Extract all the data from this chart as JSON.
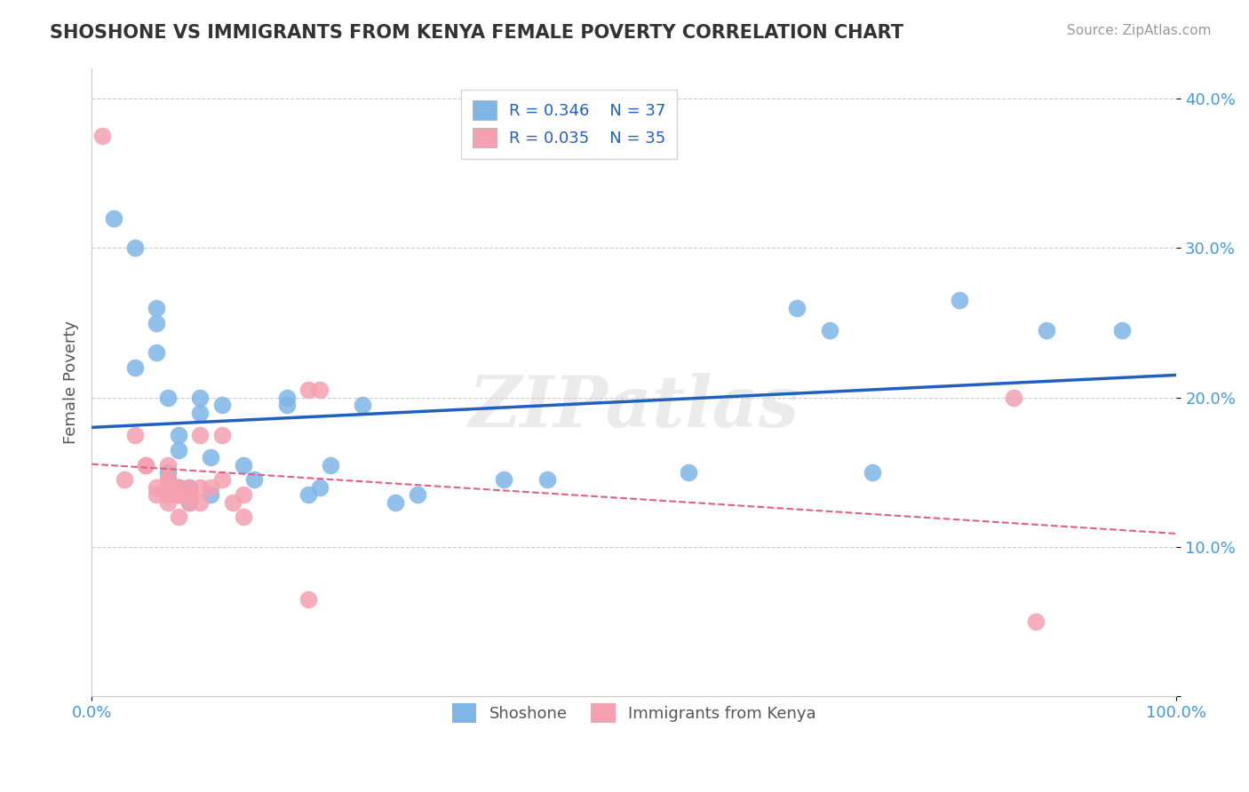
{
  "title": "SHOSHONE VS IMMIGRANTS FROM KENYA FEMALE POVERTY CORRELATION CHART",
  "source_text": "Source: ZipAtlas.com",
  "ylabel": "Female Poverty",
  "xlim": [
    0,
    1.0
  ],
  "ylim": [
    0,
    0.42
  ],
  "yticks": [
    0.0,
    0.1,
    0.2,
    0.3,
    0.4
  ],
  "yticklabels": [
    "",
    "10.0%",
    "20.0%",
    "30.0%",
    "40.0%"
  ],
  "legend1_R": "0.346",
  "legend1_N": "37",
  "legend2_R": "0.035",
  "legend2_N": "35",
  "shoshone_color": "#7EB6E8",
  "kenya_color": "#F4A0B0",
  "shoshone_line_color": "#2060C0",
  "kenya_line_color": "#E06080",
  "watermark": "ZIPatlas",
  "shoshone_x": [
    0.02,
    0.04,
    0.04,
    0.06,
    0.06,
    0.06,
    0.07,
    0.07,
    0.08,
    0.08,
    0.08,
    0.09,
    0.09,
    0.1,
    0.1,
    0.11,
    0.11,
    0.12,
    0.14,
    0.15,
    0.18,
    0.18,
    0.2,
    0.21,
    0.22,
    0.25,
    0.28,
    0.3,
    0.38,
    0.42,
    0.55,
    0.65,
    0.68,
    0.72,
    0.8,
    0.88,
    0.95
  ],
  "shoshone_y": [
    0.32,
    0.3,
    0.22,
    0.26,
    0.25,
    0.23,
    0.2,
    0.15,
    0.175,
    0.165,
    0.14,
    0.14,
    0.13,
    0.2,
    0.19,
    0.16,
    0.135,
    0.195,
    0.155,
    0.145,
    0.2,
    0.195,
    0.135,
    0.14,
    0.155,
    0.195,
    0.13,
    0.135,
    0.145,
    0.145,
    0.15,
    0.26,
    0.245,
    0.15,
    0.265,
    0.245,
    0.245
  ],
  "kenya_x": [
    0.01,
    0.03,
    0.04,
    0.05,
    0.05,
    0.06,
    0.06,
    0.07,
    0.07,
    0.07,
    0.07,
    0.07,
    0.07,
    0.08,
    0.08,
    0.08,
    0.08,
    0.08,
    0.09,
    0.09,
    0.09,
    0.1,
    0.1,
    0.1,
    0.11,
    0.12,
    0.12,
    0.13,
    0.14,
    0.14,
    0.2,
    0.21,
    0.85,
    0.87,
    0.2
  ],
  "kenya_y": [
    0.375,
    0.145,
    0.175,
    0.155,
    0.155,
    0.14,
    0.135,
    0.145,
    0.145,
    0.14,
    0.13,
    0.135,
    0.155,
    0.14,
    0.14,
    0.135,
    0.135,
    0.12,
    0.14,
    0.135,
    0.13,
    0.175,
    0.14,
    0.13,
    0.14,
    0.145,
    0.175,
    0.13,
    0.12,
    0.135,
    0.205,
    0.205,
    0.2,
    0.05,
    0.065
  ]
}
